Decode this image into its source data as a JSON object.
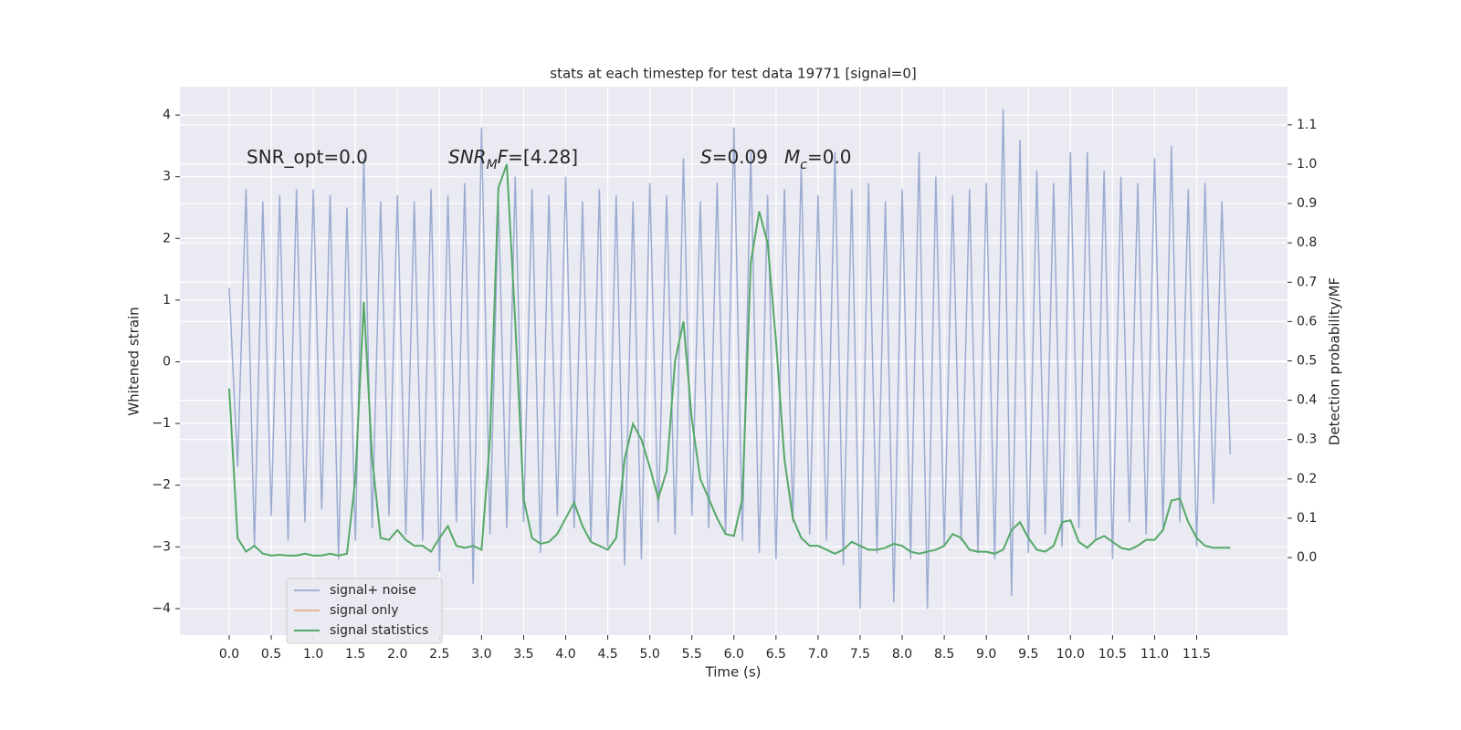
{
  "chart_data": {
    "type": "line",
    "title": "stats at each timestep for test data 19771 [signal=0]",
    "x_label": "Time (s)",
    "y_label": "Whitened strain",
    "y2_label": "Detection probability/MF",
    "annotations": [
      [
        {
          "t": "SNR_opt=0.0"
        }
      ],
      [
        {
          "t": "SNR",
          "i": true
        },
        {
          "t": "M",
          "i": true,
          "sub": true
        },
        {
          "t": "F",
          "i": true
        },
        {
          "t": "=[4.28]"
        }
      ],
      [
        {
          "t": "S",
          "i": true
        },
        {
          "t": "=0.09"
        }
      ],
      [
        {
          "t": "M",
          "i": true
        },
        {
          "t": "c",
          "i": true,
          "sub": true
        },
        {
          "t": "=0.0"
        }
      ]
    ],
    "x": [
      0,
      0.1,
      0.2,
      0.3,
      0.4,
      0.5,
      0.6,
      0.7,
      0.8,
      0.9,
      1,
      1.1,
      1.2,
      1.3,
      1.4,
      1.5,
      1.6,
      1.7,
      1.8,
      1.9,
      2,
      2.1,
      2.2,
      2.3,
      2.4,
      2.5,
      2.6,
      2.7,
      2.8,
      2.9,
      3,
      3.1,
      3.2,
      3.3,
      3.4,
      3.5,
      3.6,
      3.7,
      3.8,
      3.9,
      4,
      4.1,
      4.2,
      4.3,
      4.4,
      4.5,
      4.6,
      4.7,
      4.8,
      4.9,
      5,
      5.1,
      5.2,
      5.3,
      5.4,
      5.5,
      5.6,
      5.7,
      5.8,
      5.9,
      6,
      6.1,
      6.2,
      6.3,
      6.4,
      6.5,
      6.6,
      6.7,
      6.8,
      6.9,
      7,
      7.1,
      7.2,
      7.3,
      7.4,
      7.5,
      7.6,
      7.7,
      7.8,
      7.9,
      8,
      8.1,
      8.2,
      8.3,
      8.4,
      8.5,
      8.6,
      8.7,
      8.8,
      8.9,
      9,
      9.1,
      9.2,
      9.3,
      9.4,
      9.5,
      9.6,
      9.7,
      9.8,
      9.9,
      10,
      10.1,
      10.2,
      10.3,
      10.4,
      10.5,
      10.6,
      10.7,
      10.8,
      10.9,
      11,
      11.1,
      11.2,
      11.3,
      11.4,
      11.5,
      11.6,
      11.7,
      11.8,
      11.9
    ],
    "series": [
      {
        "name": "signal+ noise",
        "color": "#8da0cb",
        "axis": "y",
        "values": [
          1.2,
          -1.7,
          2.8,
          -3.0,
          2.6,
          -2.5,
          2.7,
          -2.9,
          2.8,
          -2.6,
          2.8,
          -2.4,
          2.7,
          -3.2,
          2.5,
          -2.9,
          3.3,
          -2.7,
          2.6,
          -2.5,
          2.7,
          -2.8,
          2.6,
          -2.9,
          2.8,
          -3.4,
          2.7,
          -2.6,
          2.9,
          -3.6,
          3.8,
          -2.8,
          2.6,
          -2.7,
          3.0,
          -2.6,
          2.8,
          -3.1,
          2.7,
          -2.5,
          3.0,
          -2.7,
          2.6,
          -2.9,
          2.8,
          -3.0,
          2.7,
          -3.3,
          2.6,
          -3.2,
          2.9,
          -2.6,
          2.7,
          -2.8,
          3.3,
          -2.5,
          2.6,
          -2.7,
          2.9,
          -2.8,
          3.8,
          -2.9,
          3.4,
          -3.1,
          2.7,
          -3.2,
          2.8,
          -2.6,
          3.2,
          -2.8,
          2.7,
          -2.9,
          3.4,
          -3.3,
          2.8,
          -4.0,
          2.9,
          -3.1,
          2.6,
          -3.9,
          2.8,
          -3.2,
          3.4,
          -4.0,
          3.0,
          -3.0,
          2.7,
          -2.9,
          2.8,
          -3.1,
          2.9,
          -3.2,
          4.1,
          -3.8,
          3.6,
          -3.1,
          3.1,
          -2.8,
          2.9,
          -3.0,
          3.4,
          -2.7,
          3.4,
          -2.9,
          3.1,
          -3.2,
          3.0,
          -2.6,
          2.9,
          -2.8,
          3.3,
          -2.7,
          3.5,
          -2.6,
          2.8,
          -3.0,
          2.9,
          -2.3,
          2.6,
          -1.5
        ]
      },
      {
        "name": "signal only",
        "color": "#e8a07e",
        "axis": "y",
        "values": [
          null,
          null,
          null,
          null,
          null,
          null,
          null,
          null,
          null,
          null,
          null,
          null,
          null,
          null,
          null,
          null,
          null,
          null,
          null,
          null,
          null,
          null,
          null,
          null,
          null,
          null,
          null,
          null,
          null,
          null,
          null,
          null,
          null,
          null,
          null,
          null,
          null,
          null,
          null,
          null,
          null,
          null,
          null,
          null,
          null,
          null,
          null,
          null,
          null,
          null,
          null,
          null,
          null,
          null,
          null,
          null,
          null,
          null,
          null,
          null,
          null,
          null,
          null,
          null,
          null,
          null,
          null,
          null,
          null,
          null,
          null,
          null,
          null,
          null,
          null,
          null,
          null,
          null,
          null,
          null,
          null,
          null,
          null,
          null,
          null,
          null,
          null,
          null,
          null,
          null,
          null,
          null,
          null,
          null,
          null,
          null,
          null,
          null,
          null,
          null,
          null,
          null,
          null,
          null,
          null,
          null,
          null,
          null,
          null,
          null,
          null,
          null,
          null,
          null,
          null,
          null,
          null,
          null,
          null,
          null
        ]
      },
      {
        "name": "signal statistics",
        "color": "#55a868",
        "axis": "y2",
        "values": [
          0.43,
          0.05,
          0.015,
          0.03,
          0.01,
          0.005,
          0.007,
          0.005,
          0.005,
          0.01,
          0.005,
          0.005,
          0.01,
          0.005,
          0.01,
          0.2,
          0.65,
          0.25,
          0.05,
          0.045,
          0.07,
          0.045,
          0.03,
          0.03,
          0.015,
          0.05,
          0.08,
          0.03,
          0.025,
          0.03,
          0.02,
          0.3,
          0.94,
          1.0,
          0.6,
          0.15,
          0.05,
          0.035,
          0.04,
          0.06,
          0.1,
          0.14,
          0.08,
          0.04,
          0.03,
          0.02,
          0.05,
          0.25,
          0.34,
          0.3,
          0.23,
          0.15,
          0.22,
          0.5,
          0.6,
          0.35,
          0.2,
          0.15,
          0.1,
          0.06,
          0.055,
          0.15,
          0.75,
          0.88,
          0.8,
          0.55,
          0.25,
          0.1,
          0.05,
          0.03,
          0.03,
          0.02,
          0.01,
          0.02,
          0.04,
          0.03,
          0.02,
          0.02,
          0.025,
          0.035,
          0.03,
          0.015,
          0.01,
          0.015,
          0.02,
          0.03,
          0.06,
          0.05,
          0.02,
          0.015,
          0.015,
          0.01,
          0.02,
          0.07,
          0.09,
          0.05,
          0.02,
          0.015,
          0.03,
          0.09,
          0.095,
          0.04,
          0.025,
          0.045,
          0.055,
          0.04,
          0.025,
          0.02,
          0.03,
          0.045,
          0.045,
          0.07,
          0.145,
          0.15,
          0.09,
          0.05,
          0.03,
          0.025,
          0.025,
          0.025
        ]
      }
    ],
    "xlim": [
      -0.586,
      12.58
    ],
    "xticks": [
      {
        "value": 0,
        "label": "0.0"
      },
      0.5,
      {
        "value": 1,
        "label": "1.0"
      },
      1.5,
      {
        "value": 2,
        "label": "2.0"
      },
      2.5,
      {
        "value": 3,
        "label": "3.0"
      },
      3.5,
      {
        "value": 4,
        "label": "4.0"
      },
      4.5,
      {
        "value": 5,
        "label": "5.0"
      },
      5.5,
      {
        "value": 6,
        "label": "6.0"
      },
      6.5,
      {
        "value": 7,
        "label": "7.0"
      },
      7.5,
      {
        "value": 8,
        "label": "8.0"
      },
      8.5,
      {
        "value": 9,
        "label": "9.0"
      },
      9.5,
      {
        "value": 10,
        "label": "10.0"
      },
      10.5,
      {
        "value": 11,
        "label": "11.0"
      },
      11.5
    ],
    "ylim": [
      -4.43,
      4.46
    ],
    "yticks": [
      {
        "value": -4,
        "label": "−4"
      },
      {
        "value": -3,
        "label": "−3"
      },
      {
        "value": -2,
        "label": "−2"
      },
      {
        "value": -1,
        "label": "−1"
      },
      0,
      1,
      2,
      3,
      4
    ],
    "y2lim": [
      -0.197,
      1.197
    ],
    "y2ticks": [
      {
        "value": 0,
        "label": "0.0"
      },
      0.1,
      0.2,
      0.3,
      0.4,
      0.5,
      0.6,
      0.7,
      0.8,
      0.9,
      {
        "value": 1,
        "label": "1.0"
      },
      1.1
    ],
    "grid": true,
    "legend": "lower left"
  }
}
